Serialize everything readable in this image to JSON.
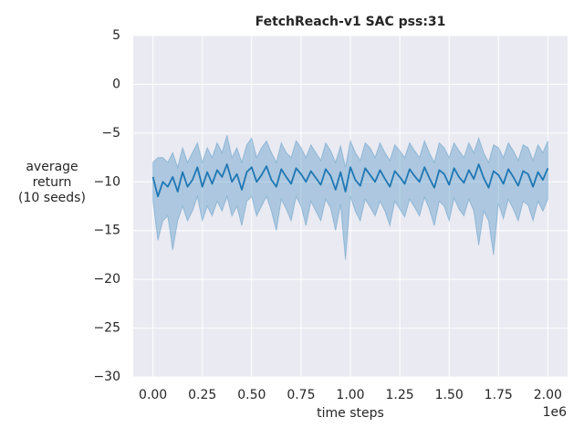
{
  "chart_data": {
    "type": "line_band",
    "title": "FetchReach-v1 SAC pss:31",
    "xlabel": "time steps",
    "xlabel_offset": "1e6",
    "ylabel": "average\nreturn\n(10 seeds)",
    "x": [
      0,
      25000,
      50000,
      75000,
      100000,
      125000,
      150000,
      175000,
      200000,
      225000,
      250000,
      275000,
      300000,
      325000,
      350000,
      375000,
      400000,
      425000,
      450000,
      475000,
      500000,
      525000,
      550000,
      575000,
      600000,
      625000,
      650000,
      675000,
      700000,
      725000,
      750000,
      775000,
      800000,
      825000,
      850000,
      875000,
      900000,
      925000,
      950000,
      975000,
      1000000,
      1025000,
      1050000,
      1075000,
      1100000,
      1125000,
      1150000,
      1175000,
      1200000,
      1225000,
      1250000,
      1275000,
      1300000,
      1325000,
      1350000,
      1375000,
      1400000,
      1425000,
      1450000,
      1475000,
      1500000,
      1525000,
      1550000,
      1575000,
      1600000,
      1625000,
      1650000,
      1675000,
      1700000,
      1725000,
      1750000,
      1775000,
      1800000,
      1825000,
      1850000,
      1875000,
      1900000,
      1925000,
      1950000,
      1975000,
      2000000
    ],
    "series": [
      {
        "color": "#1f77b4",
        "values": [
          -9.5,
          -11.5,
          -10,
          -10.5,
          -9.5,
          -11,
          -9,
          -10.5,
          -9.8,
          -8.5,
          -10.5,
          -9,
          -10.2,
          -8.8,
          -9.5,
          -8.2,
          -10,
          -9.2,
          -10.8,
          -9,
          -8.5,
          -10,
          -9.3,
          -8.4,
          -9.8,
          -10.5,
          -8.7,
          -9.5,
          -10.2,
          -8.6,
          -9.2,
          -10,
          -8.9,
          -9.6,
          -10.3,
          -8.7,
          -9.4,
          -10.8,
          -9,
          -11,
          -8.5,
          -9.8,
          -10.4,
          -8.6,
          -9.3,
          -10,
          -8.8,
          -9.7,
          -10.5,
          -8.9,
          -9.5,
          -10.2,
          -8.7,
          -9.4,
          -10,
          -8.5,
          -9.6,
          -10.6,
          -8.8,
          -9.2,
          -10.3,
          -8.6,
          -9.5,
          -10.1,
          -8.8,
          -9.7,
          -8.2,
          -9.6,
          -10.6,
          -8.9,
          -9.3,
          -10.2,
          -8.7,
          -9.5,
          -10.4,
          -8.9,
          -9.2,
          -10.5,
          -9,
          -9.8,
          -8.6
        ],
        "lower": [
          -12,
          -16,
          -14,
          -13.5,
          -17,
          -14,
          -12.5,
          -14,
          -13,
          -11.5,
          -14,
          -12.5,
          -13.5,
          -12,
          -13,
          -11.5,
          -13.5,
          -12.5,
          -14.5,
          -12,
          -11.5,
          -13.5,
          -12.5,
          -11.5,
          -13,
          -15,
          -11.8,
          -12.8,
          -14,
          -11.5,
          -12.5,
          -14.5,
          -12,
          -13,
          -14,
          -11.8,
          -12.7,
          -15,
          -12.3,
          -18,
          -11.5,
          -13,
          -14,
          -11.8,
          -12.6,
          -13.5,
          -12,
          -13,
          -14.5,
          -12,
          -12.8,
          -13.6,
          -11.8,
          -12.6,
          -13.5,
          -11.6,
          -12.8,
          -14.5,
          -12,
          -12.5,
          -14,
          -11.7,
          -12.8,
          -13.5,
          -11.8,
          -13,
          -16.5,
          -13,
          -14,
          -17.5,
          -12.2,
          -13.8,
          -11.8,
          -12.8,
          -14,
          -12,
          -12.4,
          -14,
          -12,
          -13,
          -11.8
        ],
        "upper": [
          -8,
          -7.5,
          -7.5,
          -8,
          -7,
          -8.5,
          -6.5,
          -8,
          -7,
          -6,
          -8,
          -6.5,
          -7.5,
          -6,
          -7,
          -5.2,
          -7.5,
          -6.5,
          -8,
          -6.2,
          -5.5,
          -7.5,
          -6.5,
          -5.8,
          -7,
          -8,
          -6,
          -7,
          -7.5,
          -5.8,
          -6.5,
          -7.5,
          -6.2,
          -7,
          -7.8,
          -6,
          -6.8,
          -8,
          -6.3,
          -8.5,
          -5.8,
          -7,
          -7.8,
          -6,
          -6.5,
          -7.5,
          -6,
          -7,
          -7.8,
          -6.2,
          -6.8,
          -7.5,
          -6,
          -6.8,
          -7.5,
          -5.8,
          -7,
          -8,
          -6,
          -6.5,
          -7.5,
          -6,
          -6.8,
          -7.5,
          -6,
          -7,
          -5.5,
          -7,
          -8,
          -6.2,
          -6.5,
          -7.5,
          -6,
          -6.8,
          -7.8,
          -6.2,
          -6.5,
          -7.8,
          -6.2,
          -7,
          -5.8
        ]
      }
    ],
    "xlim": [
      -100000,
      2100000
    ],
    "xticks": [
      {
        "value": 0,
        "label": "0.00"
      },
      {
        "value": 250000,
        "label": "0.25"
      },
      {
        "value": 500000,
        "label": "0.50"
      },
      {
        "value": 750000,
        "label": "0.75"
      },
      {
        "value": 1000000,
        "label": "1.00"
      },
      {
        "value": 1250000,
        "label": "1.25"
      },
      {
        "value": 1500000,
        "label": "1.50"
      },
      {
        "value": 1750000,
        "label": "1.75"
      },
      {
        "value": 2000000,
        "label": "2.00"
      }
    ],
    "ylim": [
      -30,
      5
    ],
    "yticks": [
      {
        "value": -30,
        "label": "−30"
      },
      {
        "value": -25,
        "label": "−25"
      },
      {
        "value": -20,
        "label": "−20"
      },
      {
        "value": -15,
        "label": "−15"
      },
      {
        "value": -10,
        "label": "−10"
      },
      {
        "value": -5,
        "label": "−5"
      },
      0,
      5
    ],
    "grid": true
  }
}
